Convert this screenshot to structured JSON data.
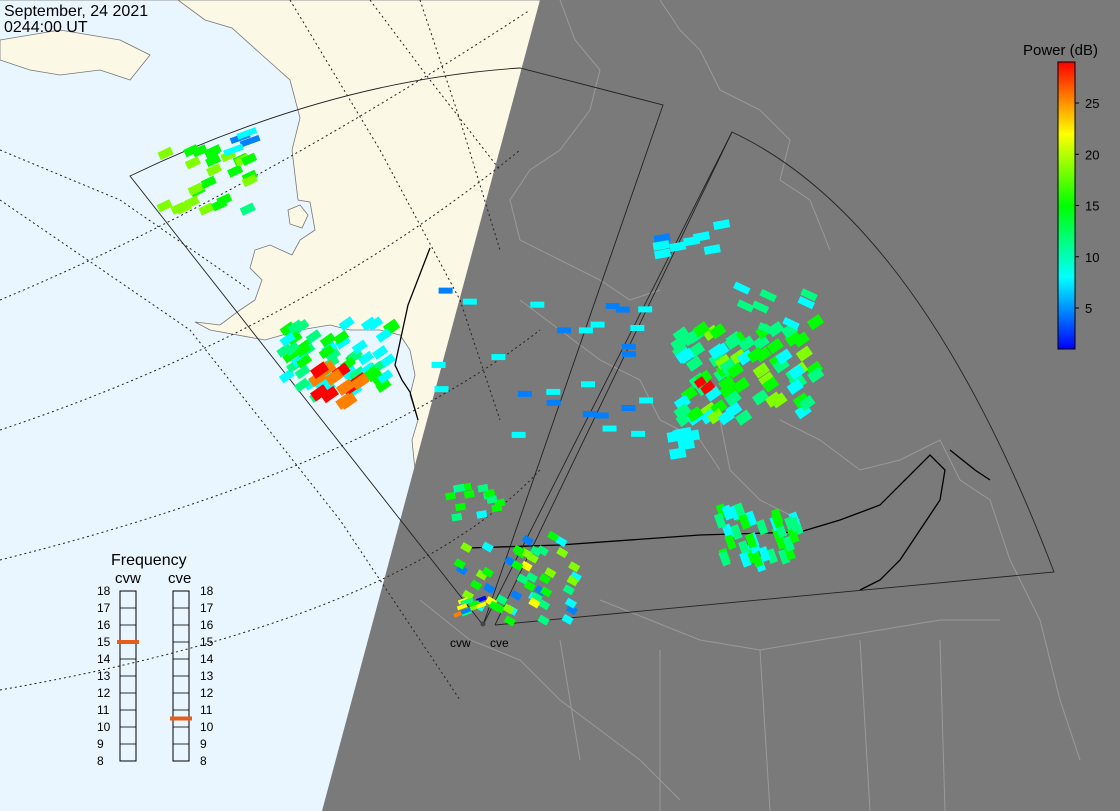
{
  "header": {
    "date": "September, 24 2021",
    "time": "0244:00 UT"
  },
  "colorbar": {
    "title": "Power (dB)",
    "ticks": [
      5,
      10,
      15,
      20,
      25
    ],
    "min": 1,
    "max": 29,
    "stops": [
      "#0000ff",
      "#0080ff",
      "#00ffff",
      "#00ff80",
      "#00ff00",
      "#80ff00",
      "#ffff00",
      "#ff8000",
      "#ff0000"
    ]
  },
  "radars": {
    "cvw": {
      "label": "cvw",
      "frequency": 15
    },
    "cve": {
      "label": "cve",
      "frequency": 10.5
    }
  },
  "frequency_panel": {
    "title": "Frequency",
    "min": 8,
    "max": 18,
    "ticks": [
      8,
      9,
      10,
      11,
      12,
      13,
      14,
      15,
      16,
      17,
      18
    ]
  },
  "colors": {
    "ocean": "#eaf6ff",
    "land": "#fbf8e6",
    "night": "#7a7a7a",
    "marker": "#e65c1a"
  }
}
